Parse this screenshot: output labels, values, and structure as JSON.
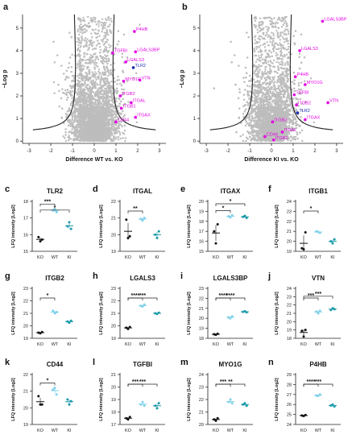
{
  "colors": {
    "gray_points": "#bdbdbd",
    "magenta": "#e400e4",
    "blue": "#1b2bb5",
    "ko_dot": "#111111",
    "wt_dot": "#7fd1ea",
    "ki_dot": "#1a9aaa",
    "curve": "#222222"
  },
  "chart_data": [
    {
      "panel": "a",
      "type": "scatter",
      "subtype": "volcano",
      "xlabel": "Difference WT vs. KO",
      "ylabel": "−Log p",
      "xlim": [
        -3.3,
        3.3
      ],
      "ylim": [
        -0.1,
        5.6
      ],
      "xticks": [
        -3,
        -2,
        -1,
        0,
        1,
        2,
        3
      ],
      "yticks": [
        0,
        1,
        2,
        3,
        4,
        5
      ],
      "grid": false,
      "labels": [
        {
          "text": "P4HB",
          "x": 1.85,
          "y": 4.85,
          "color": "magenta"
        },
        {
          "text": "TGFBI",
          "x": 0.85,
          "y": 3.9,
          "color": "magenta"
        },
        {
          "text": "LGALS3BP",
          "x": 1.9,
          "y": 3.95,
          "color": "magenta"
        },
        {
          "text": "LGALS3",
          "x": 1.45,
          "y": 3.5,
          "color": "magenta"
        },
        {
          "text": "TLR2",
          "x": 1.8,
          "y": 3.25,
          "color": "blue"
        },
        {
          "text": "MYO1G",
          "x": 1.35,
          "y": 2.65,
          "color": "magenta"
        },
        {
          "text": "ITGB2",
          "x": 1.2,
          "y": 2.0,
          "color": "magenta"
        },
        {
          "text": "ITGAL",
          "x": 1.7,
          "y": 1.7,
          "color": "magenta"
        },
        {
          "text": "ITGB1",
          "x": 1.25,
          "y": 1.45,
          "color": "magenta"
        },
        {
          "text": "ITGAX",
          "x": 1.9,
          "y": 1.05,
          "color": "magenta"
        },
        {
          "text": "CD44",
          "x": 1.0,
          "y": 0.85,
          "color": "magenta"
        },
        {
          "text": "VTN",
          "x": 2.1,
          "y": 2.7,
          "color": "magenta"
        }
      ]
    },
    {
      "panel": "b",
      "type": "scatter",
      "subtype": "volcano",
      "xlabel": "Difference KI vs. KO",
      "ylabel": "−Log p",
      "xlim": [
        -3.3,
        3.3
      ],
      "ylim": [
        -0.1,
        5.6
      ],
      "xticks": [
        -3,
        -2,
        -1,
        0,
        1,
        2,
        3
      ],
      "yticks": [
        0,
        1,
        2,
        3,
        4,
        5
      ],
      "grid": false,
      "labels": [
        {
          "text": "LGALS3BP",
          "x": 2.35,
          "y": 5.3,
          "color": "magenta"
        },
        {
          "text": "LGALS3",
          "x": 1.3,
          "y": 4.0,
          "color": "magenta"
        },
        {
          "text": "P4HB",
          "x": 1.1,
          "y": 2.85,
          "color": "magenta"
        },
        {
          "text": "MYO1G",
          "x": 1.55,
          "y": 2.5,
          "color": "magenta"
        },
        {
          "text": "TGFBI",
          "x": 1.05,
          "y": 2.05,
          "color": "magenta"
        },
        {
          "text": "VTN",
          "x": 2.6,
          "y": 1.7,
          "color": "magenta"
        },
        {
          "text": "ITGB2",
          "x": 1.15,
          "y": 1.6,
          "color": "magenta"
        },
        {
          "text": "TLR2",
          "x": 1.2,
          "y": 1.25,
          "color": "blue"
        },
        {
          "text": "ITGAX",
          "x": 1.55,
          "y": 0.95,
          "color": "magenta"
        },
        {
          "text": "ITGB2",
          "x": 0.05,
          "y": 0.85,
          "color": "magenta"
        },
        {
          "text": "ITGAL",
          "x": 0.5,
          "y": 0.4,
          "color": "magenta"
        },
        {
          "text": "CD44",
          "x": -0.3,
          "y": 0.2,
          "color": "magenta"
        },
        {
          "text": "ITGB1",
          "x": 0.1,
          "y": 0.05,
          "color": "magenta"
        }
      ]
    },
    {
      "panel": "c",
      "type": "scatter",
      "subtype": "dotplot",
      "title": "TLR2",
      "ylabel": "LFQ intensity [Log2]",
      "categories": [
        "KO",
        "WT",
        "KI"
      ],
      "ylim": [
        15,
        18
      ],
      "yticks": [
        15,
        16,
        17,
        18
      ],
      "points": {
        "KO": [
          15.85,
          15.6,
          15.7
        ],
        "WT": [
          17.45,
          17.55,
          17.35
        ],
        "KI": [
          16.5,
          16.75,
          16.35
        ]
      },
      "significance": [
        {
          "pair": [
            "KO",
            "WT"
          ],
          "label": "***"
        },
        {
          "pair": [
            "KO",
            "KI"
          ],
          "label": "*"
        }
      ]
    },
    {
      "panel": "d",
      "type": "scatter",
      "subtype": "dotplot",
      "title": "ITGAL",
      "ylabel": "LFQ intensity [Log2]",
      "categories": [
        "KO",
        "WT",
        "KI"
      ],
      "ylim": [
        19,
        22
      ],
      "yticks": [
        19,
        20,
        21,
        22
      ],
      "points": {
        "KO": [
          20.9,
          19.8,
          19.9
        ],
        "WT": [
          20.95,
          20.85,
          21.0
        ],
        "KI": [
          20.0,
          19.8,
          20.2
        ]
      },
      "significance": [
        {
          "pair": [
            "KO",
            "WT"
          ],
          "label": "**"
        }
      ]
    },
    {
      "panel": "e",
      "type": "scatter",
      "subtype": "dotplot",
      "title": "ITGAX",
      "ylabel": "LFQ intensity [Log2]",
      "categories": [
        "KO",
        "WT",
        "KI"
      ],
      "ylim": [
        15,
        20
      ],
      "yticks": [
        15,
        16,
        17,
        18,
        19,
        20
      ],
      "points": {
        "KO": [
          17.0,
          15.8,
          17.7
        ],
        "WT": [
          18.5,
          18.4,
          18.6
        ],
        "KI": [
          18.45,
          18.55,
          18.35
        ]
      },
      "significance": [
        {
          "pair": [
            "KO",
            "WT"
          ],
          "label": "*"
        },
        {
          "pair": [
            "KO",
            "KI"
          ],
          "label": "*"
        }
      ]
    },
    {
      "panel": "f",
      "type": "scatter",
      "subtype": "dotplot",
      "title": "ITGB1",
      "ylabel": "LFQ intensity [Log2]",
      "categories": [
        "KO",
        "WT",
        "KI"
      ],
      "ylim": [
        19,
        24
      ],
      "yticks": [
        19,
        20,
        21,
        22,
        23,
        24
      ],
      "points": {
        "KO": [
          19.3,
          19.2,
          20.9
        ],
        "WT": [
          21.0,
          20.95,
          20.85
        ],
        "KI": [
          20.0,
          19.8,
          20.2
        ]
      },
      "significance": [
        {
          "pair": [
            "KO",
            "WT"
          ],
          "label": "*"
        }
      ]
    },
    {
      "panel": "g",
      "type": "scatter",
      "subtype": "dotplot",
      "title": "ITGB2",
      "ylabel": "LFQ intensity [Log2]",
      "categories": [
        "KO",
        "WT",
        "KI"
      ],
      "ylim": [
        19,
        23
      ],
      "yticks": [
        19,
        20,
        21,
        22,
        23
      ],
      "points": {
        "KO": [
          19.45,
          19.4,
          19.5
        ],
        "WT": [
          21.2,
          21.0,
          21.1
        ],
        "KI": [
          20.35,
          20.25,
          20.4
        ]
      },
      "significance": [
        {
          "pair": [
            "KO",
            "WT"
          ],
          "label": "*"
        }
      ]
    },
    {
      "panel": "h",
      "type": "scatter",
      "subtype": "dotplot",
      "title": "LGALS3",
      "ylabel": "LFQ intensity [Log2]",
      "categories": [
        "KO",
        "WT",
        "KI"
      ],
      "ylim": [
        19,
        23
      ],
      "yticks": [
        19,
        20,
        21,
        22,
        23
      ],
      "points": {
        "KO": [
          19.85,
          19.75,
          19.9
        ],
        "WT": [
          21.6,
          21.55,
          21.7
        ],
        "KI": [
          21.0,
          20.95,
          21.05
        ]
      },
      "significance": [
        {
          "pair": [
            "KO",
            "WT"
          ],
          "label": "****"
        },
        {
          "pair": [
            "KO",
            "KI"
          ],
          "label": "***"
        }
      ]
    },
    {
      "panel": "i",
      "type": "scatter",
      "subtype": "dotplot",
      "title": "LGALS3BP",
      "ylabel": "LFQ intensity [Log2]",
      "categories": [
        "KO",
        "WT",
        "KI"
      ],
      "ylim": [
        18,
        23
      ],
      "yticks": [
        18,
        19,
        20,
        21,
        22,
        23
      ],
      "points": {
        "KO": [
          18.4,
          18.35,
          18.45
        ],
        "WT": [
          20.1,
          20.0,
          20.2
        ],
        "KI": [
          20.65,
          20.7,
          20.6
        ]
      },
      "significance": [
        {
          "pair": [
            "KO",
            "WT"
          ],
          "label": "****"
        },
        {
          "pair": [
            "KO",
            "KI"
          ],
          "label": "****"
        }
      ]
    },
    {
      "panel": "j",
      "type": "scatter",
      "subtype": "dotplot",
      "title": "VTN",
      "ylabel": "LFQ intensity [Log2]",
      "categories": [
        "KO",
        "WT",
        "KI"
      ],
      "ylim": [
        18,
        24
      ],
      "yticks": [
        18,
        19,
        20,
        21,
        22,
        23,
        24
      ],
      "points": {
        "KO": [
          18.9,
          18.2,
          19.0
        ],
        "WT": [
          21.2,
          21.0,
          21.3
        ],
        "KI": [
          21.4,
          21.6,
          21.5
        ]
      },
      "significance": [
        {
          "pair": [
            "KO",
            "WT"
          ],
          "label": "***"
        },
        {
          "pair": [
            "KO",
            "KI"
          ],
          "label": "***"
        }
      ]
    },
    {
      "panel": "k",
      "type": "scatter",
      "subtype": "dotplot",
      "title": "CD44",
      "ylabel": "LFQ intensity [Log2]",
      "categories": [
        "KO",
        "WT",
        "KI"
      ],
      "ylim": [
        19,
        22
      ],
      "yticks": [
        19,
        20,
        21,
        22
      ],
      "points": {
        "KO": [
          20.7,
          20.2,
          20.2
        ],
        "WT": [
          21.1,
          21.2,
          20.8
        ],
        "KI": [
          20.5,
          20.2,
          20.4
        ]
      },
      "significance": [
        {
          "pair": [
            "KO",
            "WT"
          ],
          "label": "*"
        }
      ]
    },
    {
      "panel": "l",
      "type": "scatter",
      "subtype": "dotplot",
      "title": "TGFBI",
      "ylabel": "LFQ intensity [Log2]",
      "categories": [
        "KO",
        "WT",
        "KI"
      ],
      "ylim": [
        17,
        21
      ],
      "yticks": [
        17,
        18,
        19,
        20,
        21
      ],
      "points": {
        "KO": [
          17.5,
          17.4,
          17.6
        ],
        "WT": [
          18.6,
          18.8,
          18.5
        ],
        "KI": [
          18.5,
          18.3,
          18.7
        ]
      },
      "significance": [
        {
          "pair": [
            "KO",
            "WT"
          ],
          "label": "***"
        },
        {
          "pair": [
            "KO",
            "KI"
          ],
          "label": "***"
        }
      ]
    },
    {
      "panel": "m",
      "type": "scatter",
      "subtype": "dotplot",
      "title": "MYO1G",
      "ylabel": "LFQ intensity [Log2]",
      "categories": [
        "KO",
        "WT",
        "KI"
      ],
      "ylim": [
        20,
        24
      ],
      "yticks": [
        20,
        21,
        22,
        23,
        24
      ],
      "points": {
        "KO": [
          20.4,
          20.3,
          20.5
        ],
        "WT": [
          21.8,
          22.0,
          21.7
        ],
        "KI": [
          21.6,
          21.7,
          21.5
        ]
      },
      "significance": [
        {
          "pair": [
            "KO",
            "WT"
          ],
          "label": "***"
        },
        {
          "pair": [
            "KO",
            "KI"
          ],
          "label": "**"
        }
      ]
    },
    {
      "panel": "n",
      "type": "scatter",
      "subtype": "dotplot",
      "title": "P4HB",
      "ylabel": "LFQ intensity [Log2]",
      "categories": [
        "KO",
        "WT",
        "KI"
      ],
      "ylim": [
        24,
        29
      ],
      "yticks": [
        24,
        25,
        26,
        27,
        28,
        29
      ],
      "points": {
        "KO": [
          24.9,
          24.85,
          24.95
        ],
        "WT": [
          26.9,
          26.85,
          27.0
        ],
        "KI": [
          25.9,
          26.0,
          25.8
        ]
      },
      "significance": [
        {
          "pair": [
            "KO",
            "WT"
          ],
          "label": "****"
        },
        {
          "pair": [
            "KO",
            "KI"
          ],
          "label": "***"
        }
      ]
    }
  ]
}
